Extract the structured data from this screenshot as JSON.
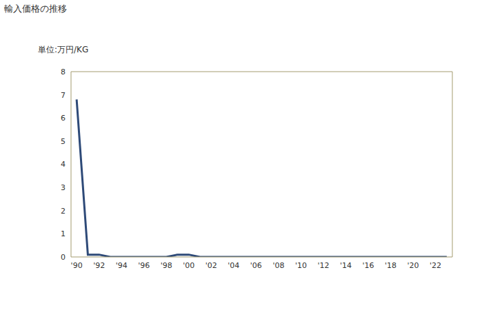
{
  "chart_data": {
    "type": "line",
    "title": "輸入価格の推移",
    "y_label": "単位:万円/KG",
    "x": [
      1990,
      1991,
      1992,
      1993,
      1994,
      1995,
      1996,
      1997,
      1998,
      1999,
      2000,
      2001,
      2002,
      2003,
      2004,
      2005,
      2006,
      2007,
      2008,
      2009,
      2010,
      2011,
      2012,
      2013,
      2014,
      2015,
      2016,
      2017,
      2018,
      2019,
      2020,
      2021,
      2022,
      2023
    ],
    "values": [
      6.8,
      0.1,
      0.1,
      0,
      0,
      0,
      0,
      0,
      0,
      0.1,
      0.1,
      0,
      0,
      0,
      0,
      0,
      0,
      0,
      0,
      0,
      0,
      0,
      0,
      0,
      0,
      0,
      0,
      0,
      0,
      0,
      0,
      0,
      0,
      0
    ],
    "color": "#2e4a78",
    "xlim": [
      1989.5,
      2023.5
    ],
    "xticks": [
      {
        "value": 1990,
        "label": "'90"
      },
      {
        "value": 1992,
        "label": "'92"
      },
      {
        "value": 1994,
        "label": "'94"
      },
      {
        "value": 1996,
        "label": "'96"
      },
      {
        "value": 1998,
        "label": "'98"
      },
      {
        "value": 2000,
        "label": "'00"
      },
      {
        "value": 2002,
        "label": "'02"
      },
      {
        "value": 2004,
        "label": "'04"
      },
      {
        "value": 2006,
        "label": "'06"
      },
      {
        "value": 2008,
        "label": "'08"
      },
      {
        "value": 2010,
        "label": "'10"
      },
      {
        "value": 2012,
        "label": "'12"
      },
      {
        "value": 2014,
        "label": "'14"
      },
      {
        "value": 2016,
        "label": "'16"
      },
      {
        "value": 2018,
        "label": "'18"
      },
      {
        "value": 2020,
        "label": "'20"
      },
      {
        "value": 2022,
        "label": "'22"
      }
    ],
    "ylim": [
      0,
      8
    ],
    "yticks": [
      0,
      1,
      2,
      3,
      4,
      5,
      6,
      7,
      8
    ],
    "grid": false
  }
}
